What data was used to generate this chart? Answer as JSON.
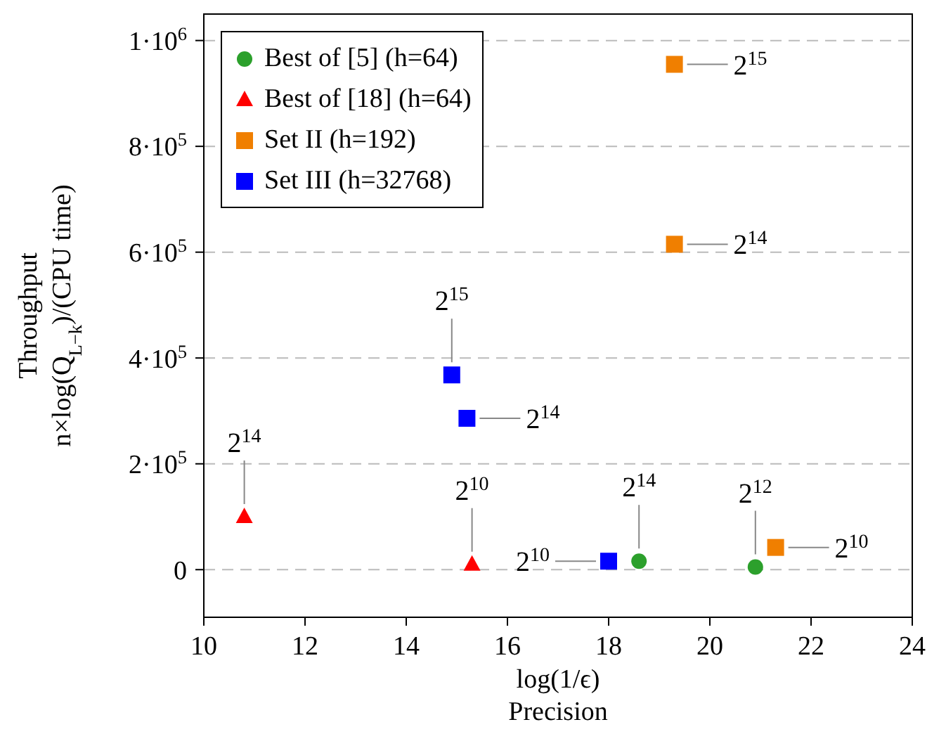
{
  "chart_data": {
    "type": "scatter",
    "xlabel": "log(1/ϵ)\nPrecision",
    "ylabel": "Throughput\nn×log(Q$_{L−k}$)/(CPU time)",
    "xlim": [
      10,
      24
    ],
    "xticks": [
      10,
      12,
      14,
      16,
      18,
      20,
      22,
      24
    ],
    "ylim": [
      -90000,
      1050000
    ],
    "yticks": [
      0,
      {
        "value": 200000,
        "label": "2·10$^{5}$"
      },
      {
        "value": 400000,
        "label": "4·10$^{5}$"
      },
      {
        "value": 600000,
        "label": "6·10$^{5}$"
      },
      {
        "value": 800000,
        "label": "8·10$^{5}$"
      },
      {
        "value": 1000000,
        "label": "1·10$^{6}$"
      }
    ],
    "grid": "y",
    "legend": "top left",
    "series": [
      {
        "name": "Best of [5] (h=64)",
        "color": "#2ca02c",
        "marker": "circle",
        "x": [
          18.6,
          20.9
        ],
        "values": [
          16000,
          5000
        ]
      },
      {
        "name": "Best of [18] (h=64)",
        "color": "#ff0000",
        "marker": "triangle",
        "x": [
          10.8,
          15.3
        ],
        "values": [
          100000,
          10000
        ]
      },
      {
        "name": "Set II (h=192)",
        "color": "#f07f00",
        "marker": "square",
        "x": [
          19.3,
          19.3,
          21.3
        ],
        "values": [
          955000,
          615000,
          42000
        ]
      },
      {
        "name": "Set III (h=32768)",
        "color": "#0000ff",
        "marker": "square",
        "x": [
          14.9,
          15.2,
          18.0
        ],
        "values": [
          368000,
          286000,
          16000
        ]
      }
    ],
    "annotations": [
      {
        "text": "2$^{15}$",
        "x": 19.3,
        "y": 955000
      },
      {
        "text": "2$^{14}$",
        "x": 19.3,
        "y": 615000
      },
      {
        "text": "2$^{15}$",
        "x": 14.9,
        "y": 368000
      },
      {
        "text": "2$^{14}$",
        "x": 15.2,
        "y": 286000
      },
      {
        "text": "2$^{14}$",
        "x": 10.8,
        "y": 100000
      },
      {
        "text": "2$^{10}$",
        "x": 15.3,
        "y": 10000
      },
      {
        "text": "2$^{10}$",
        "x": 18.0,
        "y": 16000
      },
      {
        "text": "2$^{14}$",
        "x": 18.6,
        "y": 16000
      },
      {
        "text": "2$^{12}$",
        "x": 20.9,
        "y": 5000
      },
      {
        "text": "2$^{10}$",
        "x": 21.3,
        "y": 42000
      }
    ]
  }
}
